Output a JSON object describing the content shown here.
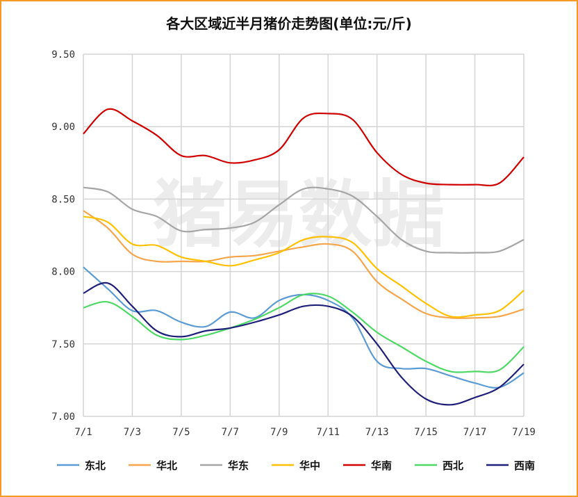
{
  "chart_data": {
    "type": "line",
    "title": "各大区域近半月猪价走势图(单位:元/斤)",
    "watermark": "猪易数据",
    "x": [
      "7/1",
      "7/2",
      "7/3",
      "7/4",
      "7/5",
      "7/6",
      "7/7",
      "7/8",
      "7/9",
      "7/10",
      "7/11",
      "7/12",
      "7/13",
      "7/14",
      "7/15",
      "7/16",
      "7/17",
      "7/18",
      "7/19"
    ],
    "x_tick_labels": [
      "7/1",
      "7/3",
      "7/5",
      "7/7",
      "7/9",
      "7/11",
      "7/13",
      "7/15",
      "7/17",
      "7/19"
    ],
    "ylim": [
      7.0,
      9.5
    ],
    "y_ticks": [
      "7.00",
      "7.50",
      "8.00",
      "8.50",
      "9.00",
      "9.50"
    ],
    "grid": true,
    "legend_position": "bottom",
    "series": [
      {
        "name": "东北",
        "color": "#5b9bd5",
        "values": [
          8.03,
          7.88,
          7.73,
          7.73,
          7.65,
          7.62,
          7.72,
          7.68,
          7.8,
          7.84,
          7.8,
          7.68,
          7.38,
          7.33,
          7.33,
          7.28,
          7.23,
          7.2,
          7.3
        ]
      },
      {
        "name": "华北",
        "color": "#f5a54a",
        "values": [
          8.42,
          8.3,
          8.12,
          8.07,
          8.07,
          8.07,
          8.1,
          8.11,
          8.14,
          8.17,
          8.19,
          8.14,
          7.93,
          7.81,
          7.71,
          7.68,
          7.68,
          7.69,
          7.74
        ]
      },
      {
        "name": "华东",
        "color": "#a5a5a5",
        "values": [
          8.58,
          8.55,
          8.43,
          8.38,
          8.28,
          8.29,
          8.3,
          8.34,
          8.46,
          8.57,
          8.57,
          8.52,
          8.38,
          8.22,
          8.14,
          8.13,
          8.13,
          8.14,
          8.22
        ]
      },
      {
        "name": "华中",
        "color": "#ffc000",
        "values": [
          8.38,
          8.34,
          8.19,
          8.18,
          8.1,
          8.07,
          8.04,
          8.08,
          8.13,
          8.22,
          8.24,
          8.2,
          8.02,
          7.9,
          7.78,
          7.69,
          7.7,
          7.73,
          7.87
        ]
      },
      {
        "name": "华南",
        "color": "#d00000",
        "values": [
          8.95,
          9.12,
          9.04,
          8.94,
          8.8,
          8.8,
          8.75,
          8.77,
          8.84,
          9.06,
          9.09,
          9.05,
          8.82,
          8.67,
          8.61,
          8.6,
          8.6,
          8.61,
          8.79
        ]
      },
      {
        "name": "西北",
        "color": "#4cd964",
        "values": [
          7.75,
          7.79,
          7.69,
          7.56,
          7.53,
          7.56,
          7.61,
          7.67,
          7.75,
          7.84,
          7.83,
          7.72,
          7.58,
          7.48,
          7.38,
          7.31,
          7.31,
          7.32,
          7.48
        ]
      },
      {
        "name": "西南",
        "color": "#1f1f7a",
        "values": [
          7.85,
          7.92,
          7.76,
          7.59,
          7.55,
          7.59,
          7.61,
          7.65,
          7.7,
          7.76,
          7.76,
          7.69,
          7.5,
          7.27,
          7.12,
          7.08,
          7.13,
          7.2,
          7.36
        ]
      }
    ]
  }
}
